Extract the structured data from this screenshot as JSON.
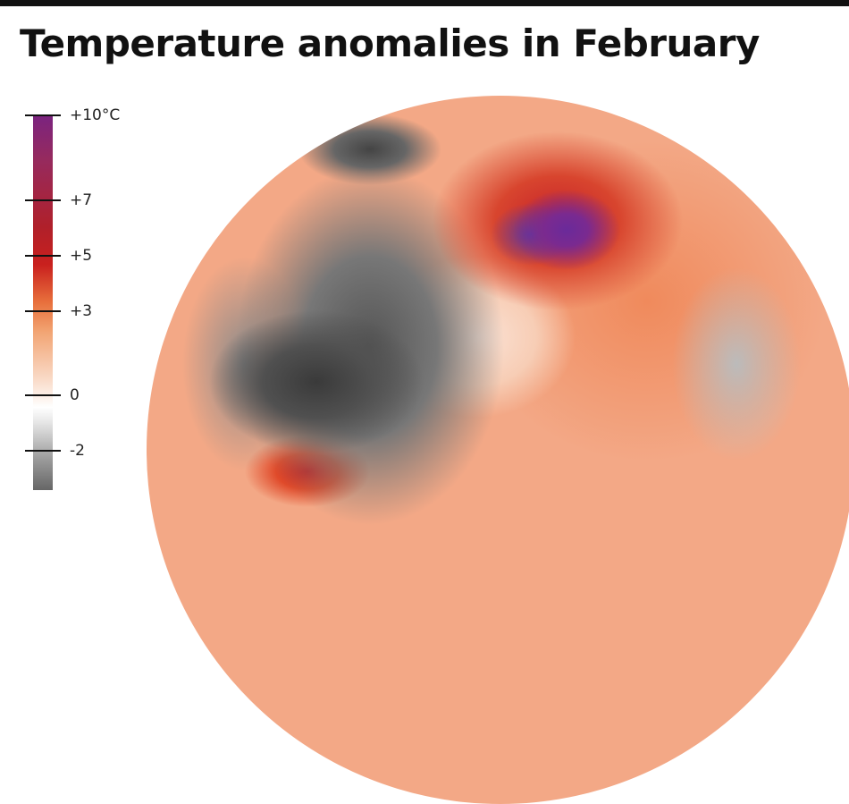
{
  "title": "Temperature anomalies in February",
  "legend": {
    "ticks": [
      {
        "label": "+10°C",
        "value": 10
      },
      {
        "label": "+7",
        "value": 7
      },
      {
        "label": "+5",
        "value": 5
      },
      {
        "label": "+3",
        "value": 3
      },
      {
        "label": "0",
        "value": 0
      },
      {
        "label": "-2",
        "value": -2
      }
    ],
    "colors": {
      "max": "#7a2380",
      "high": "#c9201e",
      "mid": "#f2a574",
      "zero": "#ffffff",
      "low": "#666666"
    }
  }
}
